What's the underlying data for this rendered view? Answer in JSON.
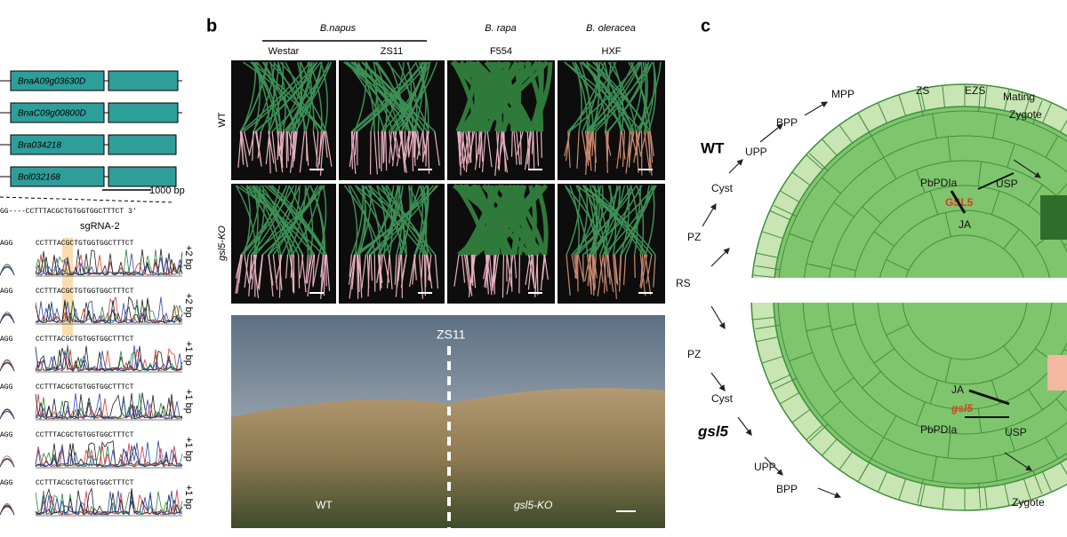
{
  "panel_a": {
    "genes": [
      "BnaA09g03630D",
      "BnaC09g00800D",
      "Bra034218",
      "Bol032168"
    ],
    "scale_bar": "1000 bp",
    "reference_seq": "GG----CCTTTACGCTGTGGTGGCTTTCT 3'",
    "sgrna": "sgRNA-2",
    "rows": [
      {
        "left": "AGG",
        "seq": "CCTTTACGCTGTGGTGGCTTTCT",
        "edit": "+2 bp"
      },
      {
        "left": "AGG",
        "seq": "CCTTTACGCTGTGGTGGCTTTCT",
        "edit": "+2 bp"
      },
      {
        "left": "AGG",
        "seq": "CCTTTACGCTGTGGTGGCTTTCT",
        "edit": "+1 bp"
      },
      {
        "left": "AGG",
        "seq": "CCTTTACGCTGTGGTGGCTTTCT",
        "edit": "+1 bp"
      },
      {
        "left": "AGG",
        "seq": "CCTTTACGCTGTGGTGGCTTTCT",
        "edit": "+1 bp"
      },
      {
        "left": "AGG",
        "seq": "CCTTTACGCTGTGGTGGCTTTCT",
        "edit": "+1 bp"
      }
    ]
  },
  "panel_b": {
    "label": "b",
    "species": [
      "B.napus",
      "B. rapa",
      "B. oleracea"
    ],
    "cultivars": [
      "Westar",
      "ZS11",
      "F554",
      "HXF"
    ],
    "rows": [
      "WT",
      "gsl5-KO"
    ],
    "field": {
      "label": "ZS11",
      "left": "WT",
      "right": "gsl5-KO"
    }
  },
  "panel_c": {
    "label": "c",
    "wt": "WT",
    "mutant": "gsl5",
    "top": [
      "MPP",
      "ZS",
      "EZS",
      "Mating",
      "Zygote",
      "BPP",
      "UPP",
      "Cyst",
      "PZ",
      "RS",
      "PbPDIa",
      "USP",
      "GSL5",
      "JA"
    ],
    "bottom": [
      "PZ",
      "Cyst",
      "UPP",
      "BPP",
      "JA",
      "gsl5",
      "PbPDIa",
      "USP",
      "Zygote"
    ]
  }
}
